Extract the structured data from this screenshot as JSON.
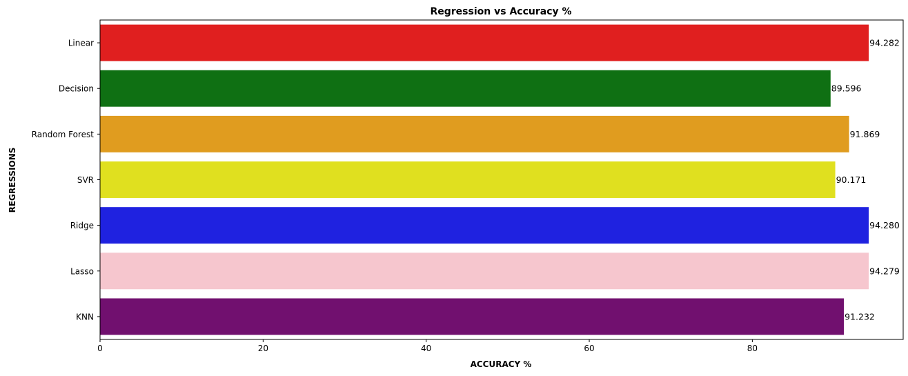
{
  "chart_data": {
    "type": "bar",
    "orientation": "horizontal",
    "title": "Regression vs Accuracy %",
    "xlabel": "ACCURACY %",
    "ylabel": "REGRESSIONS",
    "xlim": [
      0,
      98.5
    ],
    "xticks": [
      0,
      20,
      40,
      60,
      80
    ],
    "xtick_labels": [
      "0",
      "20",
      "40",
      "60",
      "80"
    ],
    "grid": false,
    "categories": [
      "Linear",
      "Decision",
      "Random Forest",
      "SVR",
      "Ridge",
      "Lasso",
      "KNN"
    ],
    "values": [
      94.282,
      89.596,
      91.869,
      90.171,
      94.28,
      94.279,
      91.232
    ],
    "data_labels": [
      "94.282",
      "89.596",
      "91.869",
      "90.171",
      "94.280",
      "94.279",
      "91.232"
    ],
    "colors": [
      "#e01f1f",
      "#0f7013",
      "#e09c1f",
      "#e0e01f",
      "#1f22e0",
      "#f6c6ce",
      "#71106f"
    ]
  }
}
